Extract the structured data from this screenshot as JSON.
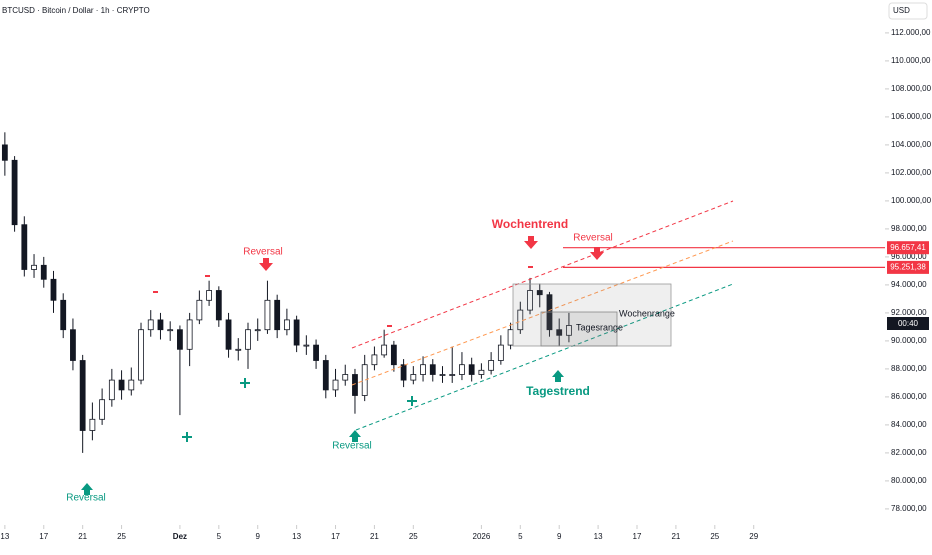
{
  "chart_data": {
    "type": "candlestick",
    "title": "BTCUSD · Bitcoin / Dollar · 1h · CRYPTO",
    "currency": "USD",
    "countdown": "00:40",
    "x": [
      0,
      1,
      2,
      3,
      4,
      5,
      6,
      7,
      8,
      9,
      10,
      11,
      12,
      13,
      14,
      15,
      16,
      17,
      18,
      19,
      20,
      21,
      22,
      23,
      24,
      25,
      26,
      27,
      28,
      29,
      30,
      31,
      32,
      33,
      34,
      35,
      36,
      37,
      38,
      39,
      40,
      41,
      42,
      43,
      44,
      45,
      46,
      47,
      48,
      49,
      50,
      51,
      52,
      53,
      54,
      55,
      56,
      57,
      58
    ],
    "open": [
      104000,
      102900,
      98300,
      95100,
      95400,
      94400,
      92900,
      90800,
      88600,
      83600,
      84400,
      85800,
      87200,
      86500,
      87200,
      90800,
      91500,
      90800,
      90800,
      89400,
      91500,
      92900,
      93600,
      91500,
      89400,
      89400,
      90800,
      90800,
      92900,
      90800,
      91500,
      89700,
      89700,
      88600,
      86500,
      87200,
      87600,
      86100,
      88300,
      89000,
      89700,
      88300,
      87200,
      87600,
      88300,
      87600,
      87600,
      87600,
      88300,
      87600,
      87900,
      88600,
      89700,
      90800,
      92200,
      93600,
      93300,
      90800,
      90400
    ],
    "high": [
      104900,
      103200,
      98900,
      96200,
      96000,
      95000,
      93400,
      91600,
      89000,
      85600,
      86600,
      88000,
      87900,
      88100,
      91300,
      92200,
      92000,
      91400,
      91100,
      92000,
      93600,
      94300,
      93900,
      92000,
      90200,
      91300,
      91600,
      94300,
      93300,
      92300,
      91800,
      90400,
      90100,
      89000,
      88000,
      88300,
      88000,
      89000,
      89600,
      90800,
      90000,
      88700,
      88200,
      88900,
      88700,
      88200,
      89600,
      89200,
      88800,
      88400,
      89200,
      90400,
      91300,
      92800,
      94500,
      94100,
      93500,
      91600,
      92000
    ],
    "low": [
      101800,
      97800,
      94600,
      94500,
      93800,
      92000,
      90200,
      87900,
      82000,
      82900,
      84000,
      85300,
      85800,
      86100,
      86900,
      90300,
      90100,
      90000,
      84700,
      88200,
      91200,
      92500,
      91000,
      88800,
      88600,
      88000,
      90000,
      90500,
      90200,
      90400,
      89200,
      89000,
      88000,
      85900,
      86000,
      86800,
      84800,
      85700,
      87900,
      88800,
      87800,
      86700,
      86900,
      87100,
      87100,
      87000,
      87000,
      87200,
      87100,
      87300,
      87600,
      88300,
      89400,
      90500,
      91900,
      92400,
      90300,
      89600,
      89900
    ],
    "close": [
      102900,
      98300,
      95100,
      95400,
      94400,
      92900,
      90800,
      88600,
      83600,
      84400,
      85800,
      87200,
      86500,
      87200,
      90800,
      91500,
      90800,
      90800,
      89400,
      91500,
      92900,
      93600,
      91500,
      89400,
      89400,
      90800,
      90800,
      92900,
      90800,
      91500,
      89700,
      89700,
      88600,
      86500,
      87200,
      87600,
      86100,
      88300,
      89000,
      89700,
      88300,
      87200,
      87600,
      88300,
      87600,
      87600,
      87600,
      88300,
      87600,
      87900,
      88600,
      89700,
      90800,
      92200,
      93600,
      93300,
      90800,
      90400,
      91100
    ],
    "color": "#131722",
    "xlim": [
      -0.5,
      90.5
    ],
    "xticks": [
      {
        "value": 0,
        "label": "13"
      },
      {
        "value": 4,
        "label": "17"
      },
      {
        "value": 8,
        "label": "21"
      },
      {
        "value": 12,
        "label": "25"
      },
      {
        "value": 18,
        "label": "Dez"
      },
      {
        "value": 22,
        "label": "5"
      },
      {
        "value": 26,
        "label": "9"
      },
      {
        "value": 30,
        "label": "13"
      },
      {
        "value": 34,
        "label": "17"
      },
      {
        "value": 38,
        "label": "21"
      },
      {
        "value": 42,
        "label": "25"
      },
      {
        "value": 49,
        "label": "2026"
      },
      {
        "value": 53,
        "label": "5"
      },
      {
        "value": 57,
        "label": "9"
      },
      {
        "value": 61,
        "label": "13"
      },
      {
        "value": 65,
        "label": "17"
      },
      {
        "value": 69,
        "label": "21"
      },
      {
        "value": 73,
        "label": "25"
      },
      {
        "value": 77,
        "label": "29"
      }
    ],
    "ylim": [
      76850,
      114350
    ],
    "yticks": [
      {
        "value": 112000,
        "label": "112.000,00"
      },
      {
        "value": 110000,
        "label": "110.000,00"
      },
      {
        "value": 108000,
        "label": "108.000,00"
      },
      {
        "value": 106000,
        "label": "106.000,00"
      },
      {
        "value": 104000,
        "label": "104.000,00"
      },
      {
        "value": 102000,
        "label": "102.000,00"
      },
      {
        "value": 100000,
        "label": "100.000,00"
      },
      {
        "value": 98000,
        "label": "98.000,00"
      },
      {
        "value": 96000,
        "label": "96.000,00"
      },
      {
        "value": 94000,
        "label": "94.000,00"
      },
      {
        "value": 92000,
        "label": "92.000,00"
      },
      {
        "value": 90000,
        "label": "90.000,00"
      },
      {
        "value": 88000,
        "label": "88.000,00"
      },
      {
        "value": 86000,
        "label": "86.000,00"
      },
      {
        "value": 84000,
        "label": "84.000,00"
      },
      {
        "value": 82000,
        "label": "82.000,00"
      },
      {
        "value": 80000,
        "label": "80.000,00"
      },
      {
        "value": 78000,
        "label": "78.000,00"
      }
    ],
    "levels": [
      {
        "value": 96657.41,
        "label": "96.657,41"
      },
      {
        "value": 95251.38,
        "label": "95.251,38"
      }
    ],
    "level_color": "#f23645",
    "annotations": [
      "Reversal",
      "Reversal",
      "Reversal",
      "Reversal",
      "Wochentrend",
      "Tagestrend",
      "Wochenrange",
      "Tagesrange"
    ]
  }
}
